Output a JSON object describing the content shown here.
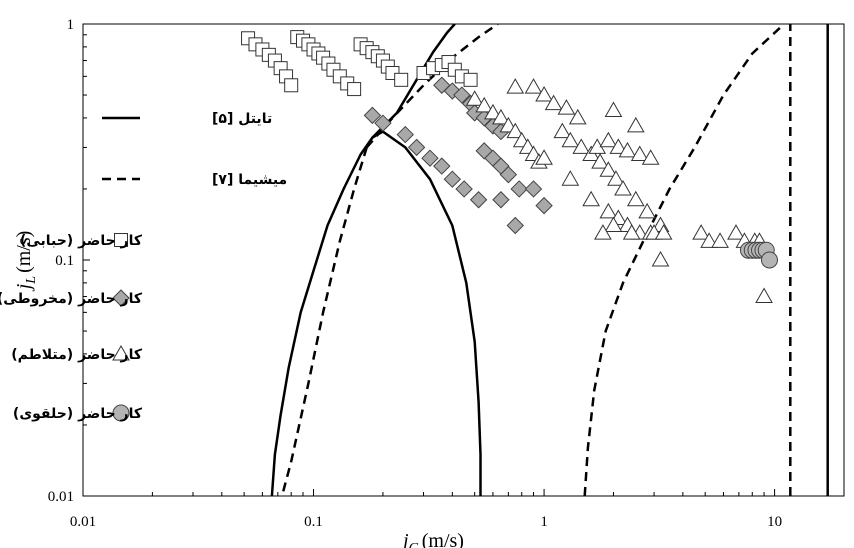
{
  "chart_data": {
    "type": "scatter",
    "xscale": "log",
    "yscale": "log",
    "xlim": [
      0.01,
      20
    ],
    "ylim": [
      0.01,
      1
    ],
    "xlabel": {
      "main": "j",
      "sub": "G",
      "unit": "(m/s)"
    },
    "ylabel": {
      "main": "j",
      "sub": "L",
      "unit": "(m/s)"
    },
    "xticks": [
      {
        "value": 0.01,
        "label": "0.01"
      },
      {
        "value": 0.1,
        "label": "0.1"
      },
      {
        "value": 1,
        "label": "1"
      },
      {
        "value": 10,
        "label": "10"
      }
    ],
    "yticks": [
      {
        "value": 0.01,
        "label": "0.01"
      },
      {
        "value": 0.1,
        "label": "0.1"
      },
      {
        "value": 1,
        "label": "1"
      }
    ],
    "legend_position": "left",
    "lines": [
      {
        "name": "تایتل [۵]",
        "style": "solid",
        "color": "#000000",
        "segments": [
          [
            [
              0.066,
              0.01
            ],
            [
              0.068,
              0.015
            ],
            [
              0.072,
              0.022
            ],
            [
              0.078,
              0.035
            ],
            [
              0.088,
              0.06
            ],
            [
              0.1,
              0.09
            ],
            [
              0.115,
              0.14
            ],
            [
              0.135,
              0.2
            ],
            [
              0.16,
              0.28
            ],
            [
              0.18,
              0.33
            ],
            [
              0.2,
              0.35
            ],
            [
              0.25,
              0.3
            ],
            [
              0.32,
              0.22
            ],
            [
              0.4,
              0.14
            ],
            [
              0.46,
              0.08
            ],
            [
              0.5,
              0.045
            ],
            [
              0.52,
              0.025
            ],
            [
              0.53,
              0.015
            ],
            [
              0.53,
              0.01
            ]
          ],
          [
            [
              0.18,
              0.33
            ],
            [
              0.23,
              0.42
            ],
            [
              0.28,
              0.58
            ],
            [
              0.33,
              0.76
            ],
            [
              0.38,
              0.92
            ],
            [
              0.41,
              1.0
            ]
          ],
          [
            [
              17,
              0.01
            ],
            [
              17,
              1.0
            ]
          ]
        ]
      },
      {
        "name": "میشیما [۷]",
        "style": "dashed",
        "color": "#000000",
        "segments": [
          [
            [
              0.17,
              0.3
            ],
            [
              0.22,
              0.4
            ],
            [
              0.3,
              0.55
            ],
            [
              0.4,
              0.72
            ],
            [
              0.52,
              0.88
            ],
            [
              0.63,
              1.0
            ]
          ],
          [
            [
              0.17,
              0.3
            ],
            [
              0.15,
              0.2
            ],
            [
              0.13,
              0.12
            ],
            [
              0.11,
              0.06
            ],
            [
              0.095,
              0.03
            ],
            [
              0.08,
              0.014
            ],
            [
              0.073,
              0.01
            ]
          ],
          [
            [
              1.5,
              0.01
            ],
            [
              1.55,
              0.016
            ],
            [
              1.65,
              0.028
            ],
            [
              1.85,
              0.05
            ],
            [
              2.2,
              0.08
            ],
            [
              2.8,
              0.13
            ],
            [
              3.5,
              0.2
            ],
            [
              4.5,
              0.3
            ],
            [
              6,
              0.5
            ],
            [
              8,
              0.75
            ],
            [
              11,
              1.0
            ]
          ],
          [
            [
              11.7,
              0.01
            ],
            [
              11.7,
              1.0
            ]
          ]
        ]
      }
    ],
    "series": [
      {
        "name": "کار حاضر (حبابی)",
        "marker": "square",
        "points": [
          [
            0.052,
            0.87
          ],
          [
            0.056,
            0.82
          ],
          [
            0.06,
            0.78
          ],
          [
            0.064,
            0.74
          ],
          [
            0.068,
            0.7
          ],
          [
            0.072,
            0.65
          ],
          [
            0.076,
            0.6
          ],
          [
            0.08,
            0.55
          ],
          [
            0.085,
            0.88
          ],
          [
            0.09,
            0.85
          ],
          [
            0.095,
            0.82
          ],
          [
            0.1,
            0.78
          ],
          [
            0.105,
            0.75
          ],
          [
            0.11,
            0.72
          ],
          [
            0.116,
            0.68
          ],
          [
            0.122,
            0.64
          ],
          [
            0.13,
            0.6
          ],
          [
            0.14,
            0.56
          ],
          [
            0.15,
            0.53
          ],
          [
            0.16,
            0.82
          ],
          [
            0.17,
            0.79
          ],
          [
            0.18,
            0.76
          ],
          [
            0.19,
            0.73
          ],
          [
            0.2,
            0.7
          ],
          [
            0.21,
            0.66
          ],
          [
            0.22,
            0.62
          ],
          [
            0.24,
            0.58
          ],
          [
            0.3,
            0.62
          ],
          [
            0.33,
            0.65
          ],
          [
            0.36,
            0.67
          ],
          [
            0.385,
            0.69
          ],
          [
            0.41,
            0.64
          ],
          [
            0.44,
            0.6
          ],
          [
            0.48,
            0.58
          ]
        ]
      },
      {
        "name": "کار حاضر (مخروطی)",
        "marker": "diamond",
        "points": [
          [
            0.18,
            0.41
          ],
          [
            0.2,
            0.38
          ],
          [
            0.25,
            0.34
          ],
          [
            0.28,
            0.3
          ],
          [
            0.32,
            0.27
          ],
          [
            0.36,
            0.25
          ],
          [
            0.4,
            0.22
          ],
          [
            0.45,
            0.2
          ],
          [
            0.52,
            0.18
          ],
          [
            0.36,
            0.55
          ],
          [
            0.4,
            0.52
          ],
          [
            0.44,
            0.5
          ],
          [
            0.48,
            0.46
          ],
          [
            0.5,
            0.42
          ],
          [
            0.55,
            0.4
          ],
          [
            0.6,
            0.37
          ],
          [
            0.65,
            0.35
          ],
          [
            0.55,
            0.29
          ],
          [
            0.6,
            0.27
          ],
          [
            0.65,
            0.25
          ],
          [
            0.7,
            0.23
          ],
          [
            0.78,
            0.2
          ],
          [
            0.65,
            0.18
          ],
          [
            0.75,
            0.14
          ],
          [
            0.9,
            0.2
          ],
          [
            1.0,
            0.17
          ]
        ]
      },
      {
        "name": "کار حاضر (متلاطم)",
        "marker": "triangle",
        "points": [
          [
            0.5,
            0.48
          ],
          [
            0.55,
            0.45
          ],
          [
            0.6,
            0.42
          ],
          [
            0.65,
            0.4
          ],
          [
            0.7,
            0.37
          ],
          [
            0.75,
            0.35
          ],
          [
            0.8,
            0.32
          ],
          [
            0.85,
            0.3
          ],
          [
            0.9,
            0.28
          ],
          [
            0.95,
            0.26
          ],
          [
            0.75,
            0.54
          ],
          [
            0.9,
            0.54
          ],
          [
            1.0,
            0.5
          ],
          [
            1.1,
            0.46
          ],
          [
            1.25,
            0.44
          ],
          [
            1.4,
            0.4
          ],
          [
            1.2,
            0.35
          ],
          [
            1.3,
            0.32
          ],
          [
            1.45,
            0.3
          ],
          [
            1.6,
            0.28
          ],
          [
            1.75,
            0.26
          ],
          [
            1.9,
            0.24
          ],
          [
            2.05,
            0.22
          ],
          [
            1.0,
            0.27
          ],
          [
            1.3,
            0.22
          ],
          [
            1.6,
            0.18
          ],
          [
            1.9,
            0.16
          ],
          [
            2.1,
            0.15
          ],
          [
            2.3,
            0.14
          ],
          [
            2.6,
            0.13
          ],
          [
            2.9,
            0.13
          ],
          [
            1.7,
            0.3
          ],
          [
            1.9,
            0.32
          ],
          [
            2.1,
            0.3
          ],
          [
            2.3,
            0.29
          ],
          [
            2.6,
            0.28
          ],
          [
            2.9,
            0.27
          ],
          [
            2.5,
            0.37
          ],
          [
            2.0,
            0.43
          ],
          [
            2.2,
            0.2
          ],
          [
            2.5,
            0.18
          ],
          [
            2.8,
            0.16
          ],
          [
            3.2,
            0.14
          ],
          [
            2.0,
            0.14
          ],
          [
            1.8,
            0.13
          ],
          [
            2.4,
            0.13
          ],
          [
            3.0,
            0.13
          ],
          [
            3.3,
            0.13
          ],
          [
            3.2,
            0.1
          ],
          [
            4.8,
            0.13
          ],
          [
            5.2,
            0.12
          ],
          [
            5.8,
            0.12
          ],
          [
            6.8,
            0.13
          ],
          [
            7.4,
            0.12
          ],
          [
            8.2,
            0.12
          ],
          [
            8.6,
            0.12
          ],
          [
            9.0,
            0.07
          ]
        ]
      },
      {
        "name": "کار حاضر (حلقوی)",
        "marker": "circle",
        "points": [
          [
            7.7,
            0.11
          ],
          [
            8.0,
            0.11
          ],
          [
            8.3,
            0.11
          ],
          [
            8.6,
            0.11
          ],
          [
            8.9,
            0.11
          ],
          [
            9.2,
            0.11
          ],
          [
            9.5,
            0.1
          ]
        ]
      }
    ]
  }
}
